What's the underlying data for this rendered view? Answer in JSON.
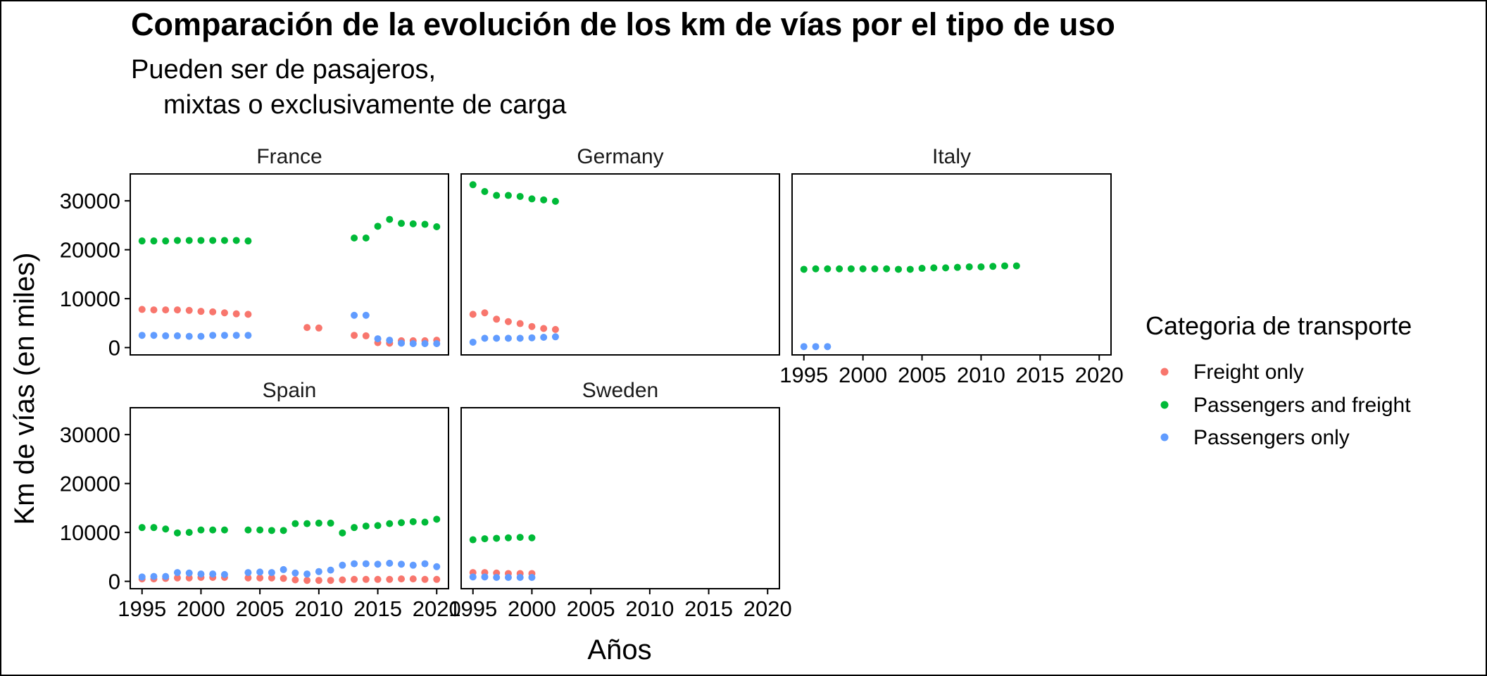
{
  "chart_data": {
    "type": "scatter",
    "title": "Comparación de la evolución de los km de vías por el tipo de uso",
    "subtitle_lines": [
      "Pueden ser de pasajeros,",
      "mixtas o exclusivamente de carga"
    ],
    "xlabel": "Años",
    "ylabel": "Km de vías (en miles)",
    "xlim": [
      1994,
      2021
    ],
    "ylim": [
      -1500,
      35500
    ],
    "x_ticks": [
      1995,
      2000,
      2005,
      2010,
      2015,
      2020
    ],
    "y_ticks": [
      0,
      10000,
      20000,
      30000
    ],
    "grid": false,
    "legend": {
      "title": "Categoria de transporte",
      "position": "right",
      "entries": [
        {
          "name": "Freight only",
          "color": "#F8766D"
        },
        {
          "name": "Passengers and freight",
          "color": "#00BA38"
        },
        {
          "name": "Passengers only",
          "color": "#619CFF"
        }
      ]
    },
    "facets": [
      {
        "name": "France",
        "series": [
          {
            "name": "Freight only",
            "x": [
              1995,
              1996,
              1997,
              1998,
              1999,
              2000,
              2001,
              2002,
              2003,
              2004,
              2009,
              2010,
              2013,
              2014,
              2015,
              2016,
              2017,
              2018,
              2019,
              2020
            ],
            "y": [
              7800,
              7700,
              7700,
              7700,
              7600,
              7400,
              7300,
              7100,
              6900,
              6800,
              4100,
              4000,
              2500,
              2400,
              1000,
              900,
              1400,
              1400,
              1400,
              1500
            ]
          },
          {
            "name": "Passengers and freight",
            "x": [
              1995,
              1996,
              1997,
              1998,
              1999,
              2000,
              2001,
              2002,
              2003,
              2004,
              2013,
              2014,
              2015,
              2016,
              2017,
              2018,
              2019,
              2020
            ],
            "y": [
              21800,
              21800,
              21800,
              21900,
              21900,
              21900,
              21900,
              21900,
              21900,
              21800,
              22400,
              22400,
              24800,
              26200,
              25400,
              25300,
              25200,
              24700
            ]
          },
          {
            "name": "Passengers only",
            "x": [
              1995,
              1996,
              1997,
              1998,
              1999,
              2000,
              2001,
              2002,
              2003,
              2004,
              2013,
              2014,
              2015,
              2016,
              2017,
              2018,
              2019,
              2020
            ],
            "y": [
              2500,
              2500,
              2400,
              2400,
              2300,
              2300,
              2500,
              2500,
              2500,
              2500,
              6600,
              6600,
              1800,
              1500,
              900,
              800,
              800,
              800
            ]
          }
        ]
      },
      {
        "name": "Germany",
        "series": [
          {
            "name": "Freight only",
            "x": [
              1995,
              1996,
              1997,
              1998,
              1999,
              2000,
              2001,
              2002
            ],
            "y": [
              6800,
              7100,
              5800,
              5300,
              4900,
              4300,
              3900,
              3700
            ]
          },
          {
            "name": "Passengers and freight",
            "x": [
              1995,
              1996,
              1997,
              1998,
              1999,
              2000,
              2001,
              2002
            ],
            "y": [
              33300,
              31900,
              31100,
              31100,
              30900,
              30400,
              30200,
              29900
            ]
          },
          {
            "name": "Passengers only",
            "x": [
              1995,
              1996,
              1997,
              1998,
              1999,
              2000,
              2001,
              2002
            ],
            "y": [
              1100,
              1900,
              1900,
              1900,
              1900,
              2000,
              2100,
              2200
            ]
          }
        ]
      },
      {
        "name": "Italy",
        "series": [
          {
            "name": "Freight only",
            "x": [],
            "y": []
          },
          {
            "name": "Passengers and freight",
            "x": [
              1995,
              1996,
              1997,
              1998,
              1999,
              2000,
              2001,
              2002,
              2003,
              2004,
              2005,
              2006,
              2007,
              2008,
              2009,
              2010,
              2011,
              2012,
              2013
            ],
            "y": [
              16000,
              16100,
              16100,
              16100,
              16100,
              16100,
              16100,
              16100,
              16000,
              16000,
              16200,
              16300,
              16300,
              16400,
              16500,
              16500,
              16600,
              16700,
              16700
            ]
          },
          {
            "name": "Passengers only",
            "x": [
              1995,
              1996,
              1997
            ],
            "y": [
              200,
              200,
              200
            ]
          }
        ]
      },
      {
        "name": "Spain",
        "series": [
          {
            "name": "Freight only",
            "x": [
              1995,
              1996,
              1997,
              1998,
              1999,
              2000,
              2001,
              2002,
              2004,
              2005,
              2006,
              2007,
              2008,
              2009,
              2010,
              2011,
              2012,
              2013,
              2014,
              2015,
              2016,
              2017,
              2018,
              2019,
              2020
            ],
            "y": [
              500,
              500,
              600,
              700,
              700,
              800,
              800,
              800,
              700,
              700,
              700,
              600,
              300,
              200,
              200,
              200,
              300,
              400,
              400,
              400,
              400,
              500,
              500,
              400,
              400
            ]
          },
          {
            "name": "Passengers and freight",
            "x": [
              1995,
              1996,
              1997,
              1998,
              1999,
              2000,
              2001,
              2002,
              2004,
              2005,
              2006,
              2007,
              2008,
              2009,
              2010,
              2011,
              2012,
              2013,
              2014,
              2015,
              2016,
              2017,
              2018,
              2019,
              2020
            ],
            "y": [
              11000,
              11000,
              10700,
              9900,
              10000,
              10500,
              10500,
              10500,
              10500,
              10500,
              10400,
              10400,
              11800,
              11800,
              11900,
              11900,
              9900,
              11000,
              11300,
              11400,
              11800,
              12000,
              12200,
              12100,
              12700
            ]
          },
          {
            "name": "Passengers only",
            "x": [
              1995,
              1996,
              1997,
              1998,
              1999,
              2000,
              2001,
              2002,
              2004,
              2005,
              2006,
              2007,
              2008,
              2009,
              2010,
              2011,
              2012,
              2013,
              2014,
              2015,
              2016,
              2017,
              2018,
              2019,
              2020
            ],
            "y": [
              900,
              1000,
              1000,
              1800,
              1700,
              1500,
              1500,
              1400,
              1800,
              1900,
              1800,
              2400,
              1700,
              1500,
              2000,
              2300,
              3300,
              3600,
              3600,
              3500,
              3700,
              3500,
              3300,
              3600,
              3000
            ]
          }
        ]
      },
      {
        "name": "Sweden",
        "series": [
          {
            "name": "Freight only",
            "x": [
              1995,
              1996,
              1997,
              1998,
              1999,
              2000
            ],
            "y": [
              1800,
              1800,
              1700,
              1600,
              1600,
              1600
            ]
          },
          {
            "name": "Passengers and freight",
            "x": [
              1995,
              1996,
              1997,
              1998,
              1999,
              2000
            ],
            "y": [
              8500,
              8700,
              8800,
              8900,
              9000,
              8900
            ]
          },
          {
            "name": "Passengers only",
            "x": [
              1995,
              1996,
              1997,
              1998,
              1999,
              2000
            ],
            "y": [
              900,
              900,
              800,
              800,
              800,
              800
            ]
          }
        ]
      }
    ]
  }
}
